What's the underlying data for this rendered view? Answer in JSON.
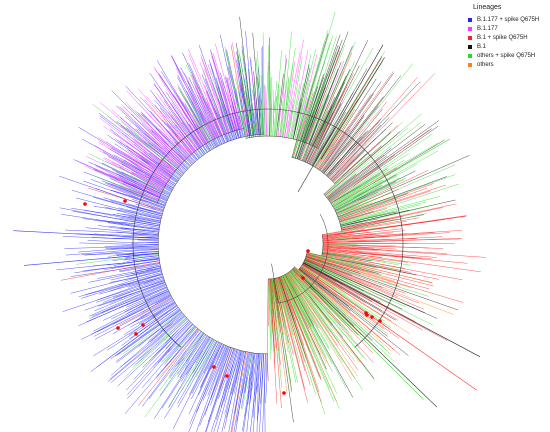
{
  "legend": {
    "title": "Lineages",
    "items": [
      {
        "label": "B.1.177 + spike Q675H",
        "color": "#2323ff"
      },
      {
        "label": "B.1.177",
        "color": "#ff33ff"
      },
      {
        "label": "B.1 + spike Q675H",
        "color": "#ff2020"
      },
      {
        "label": "B.1",
        "color": "#111111"
      },
      {
        "label": "others + spike Q675H",
        "color": "#22dd22"
      },
      {
        "label": "others",
        "color": "#ff7f1e"
      }
    ]
  },
  "marker_color": "#ff0000"
}
